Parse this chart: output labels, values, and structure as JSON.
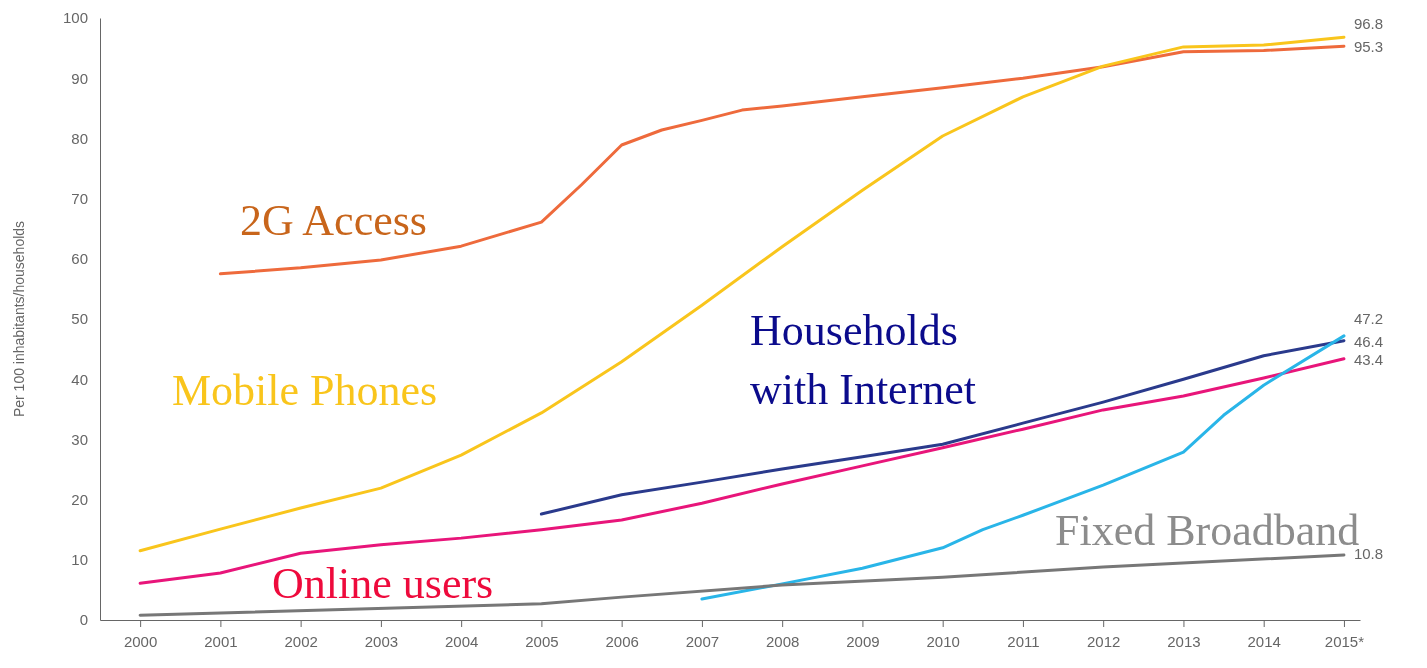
{
  "chart_data": {
    "type": "line",
    "ylabel": "Per 100 inhabitants/households",
    "xlim": [
      1999.5,
      2015.2
    ],
    "ylim": [
      0,
      100
    ],
    "xticks": [
      2000,
      2001,
      2002,
      2003,
      2004,
      2005,
      2006,
      2007,
      2008,
      2009,
      2010,
      2011,
      2012,
      2013,
      2014,
      {
        "value": 2015,
        "label": "2015*"
      }
    ],
    "yticks": [
      0,
      10,
      20,
      30,
      40,
      50,
      60,
      70,
      80,
      90,
      100
    ],
    "grid": false,
    "marker": "none",
    "line_style": "solid",
    "series": [
      {
        "name": "2G Access",
        "color": "#ee6a3c",
        "x": [
          2001,
          2002,
          2003,
          2004,
          2005,
          2005.5,
          2006,
          2006.5,
          2007,
          2007.5,
          2008,
          2009,
          2010,
          2011,
          2012,
          2013,
          2014,
          2015
        ],
        "values": [
          57.5,
          58.5,
          59.8,
          62.1,
          66.1,
          72.3,
          78.9,
          81.4,
          83,
          84.7,
          85.4,
          86.9,
          88.4,
          90,
          91.9,
          94.4,
          94.6,
          95.3
        ],
        "value_labels": [
          null,
          null,
          null,
          null,
          null,
          null,
          null,
          null,
          null,
          null,
          null,
          null,
          null,
          null,
          null,
          null,
          null,
          "95.3"
        ]
      },
      {
        "name": "Mobile Phones",
        "color": "#f9c51c",
        "x": [
          2000,
          2001,
          2002,
          2003,
          2004,
          2005,
          2006,
          2007,
          2008,
          2009,
          2010,
          2011,
          2012,
          2013,
          2014,
          2015
        ],
        "values": [
          11.5,
          15.1,
          18.6,
          21.9,
          27.4,
          34.4,
          42.9,
          52.3,
          62,
          71.4,
          80.4,
          86.9,
          92,
          95.2,
          95.5,
          96.8
        ],
        "value_labels": [
          null,
          null,
          null,
          null,
          null,
          null,
          null,
          null,
          null,
          null,
          null,
          null,
          null,
          null,
          null,
          "96.8"
        ]
      },
      {
        "name": "Households with Internet",
        "color": "#2a3a8c",
        "x": [
          2005,
          2006,
          2007,
          2008,
          2009,
          2010,
          2011,
          2012,
          2013,
          2014,
          2015
        ],
        "values": [
          17.6,
          20.8,
          22.9,
          25.1,
          27.1,
          29.2,
          32.7,
          36.2,
          40,
          43.9,
          46.4
        ],
        "value_labels": [
          null,
          null,
          null,
          null,
          null,
          null,
          null,
          null,
          null,
          null,
          "46.4"
        ]
      },
      {
        "name": "Online users",
        "color": "#e8157a",
        "x": [
          2000,
          2001,
          2002,
          2003,
          2004,
          2005,
          2006,
          2007,
          2008,
          2009,
          2010,
          2011,
          2012,
          2013,
          2014,
          2015
        ],
        "values": [
          6.1,
          7.8,
          11.1,
          12.5,
          13.6,
          15,
          16.6,
          19.4,
          22.6,
          25.6,
          28.6,
          31.7,
          34.9,
          37.2,
          40.2,
          43.4
        ],
        "value_labels": [
          null,
          null,
          null,
          null,
          null,
          null,
          null,
          null,
          null,
          null,
          null,
          null,
          null,
          null,
          null,
          "43.4"
        ]
      },
      {
        "color": "#29b5e8",
        "x": [
          2007,
          2008,
          2009,
          2010,
          2010.5,
          2011,
          2012,
          2013,
          2013.5,
          2014,
          2015
        ],
        "values": [
          3.5,
          6,
          8.6,
          12,
          15,
          17.4,
          22.4,
          27.9,
          34,
          39,
          47.2
        ],
        "value_labels": [
          null,
          null,
          null,
          null,
          null,
          null,
          null,
          null,
          null,
          null,
          "47.2"
        ]
      },
      {
        "name": "Fixed Broadband",
        "color": "#777777",
        "x": [
          2000,
          2005,
          2006,
          2008,
          2010,
          2012,
          2015
        ],
        "values": [
          0.8,
          2.7,
          3.8,
          5.8,
          7.1,
          8.8,
          10.8
        ],
        "value_labels": [
          null,
          null,
          null,
          null,
          null,
          null,
          "10.8"
        ]
      }
    ]
  }
}
